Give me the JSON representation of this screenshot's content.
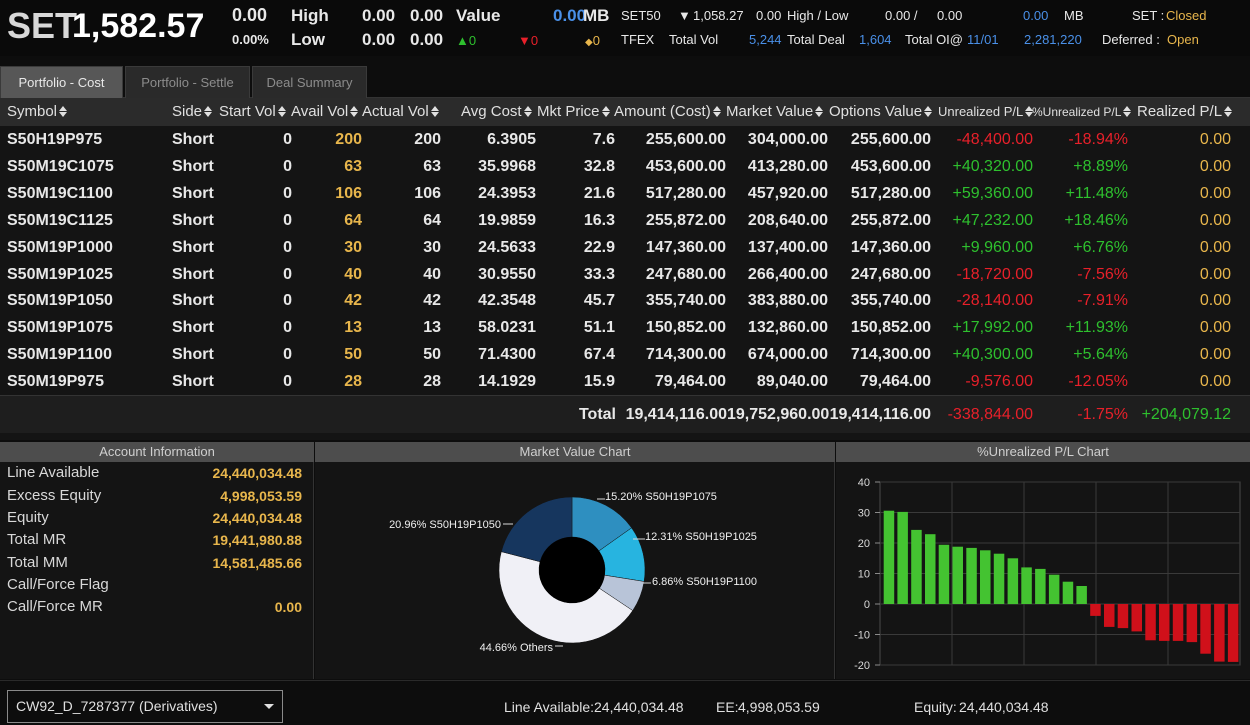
{
  "ticker": {
    "set_label": "SET",
    "set_value": "1,582.57",
    "change": "0.00",
    "change_pct": "0.00%",
    "high_label": "High",
    "low_label": "Low",
    "high_values": [
      "0.00",
      "0.00"
    ],
    "low_values": [
      "0.00",
      "0.00"
    ],
    "value_label": "Value",
    "value_amount": "0.00",
    "value_unit": "MB",
    "up_count": "0",
    "down_count": "0",
    "unchanged_count": "0",
    "set50_label": "SET50",
    "set50_value": "1,058.27",
    "set50_change": "0.00",
    "set50_hl_label": "High / Low",
    "set50_high": "0.00 /",
    "set50_low": "0.00",
    "set50_value_amount": "0.00",
    "set50_value_unit": "MB",
    "tfex_label": "TFEX",
    "total_vol_label": "Total Vol",
    "total_vol": "5,244",
    "total_deal_label": "Total Deal",
    "total_deal": "1,604",
    "total_oi_label": "Total OI@",
    "total_oi_date": "11/01",
    "total_oi": "2,281,220",
    "set_status_label": "SET :",
    "set_status": "Closed",
    "deferred_label": "Deferred :",
    "deferred_status": "Open"
  },
  "tabs": [
    "Portfolio - Cost",
    "Portfolio - Settle",
    "Deal Summary"
  ],
  "columns": [
    "Symbol",
    "Side",
    "Start Vol",
    "Avail Vol",
    "Actual Vol",
    "Avg Cost",
    "Mkt Price",
    "Amount (Cost)",
    "Market Value",
    "Options Value",
    "Unrealized P/L",
    "%Unrealized P/L",
    "Realized P/L"
  ],
  "rows": [
    [
      "S50H19P975",
      "Short",
      "0",
      "200",
      "200",
      "6.3905",
      "7.6",
      "255,600.00",
      "304,000.00",
      "255,600.00",
      "-48,400.00",
      "-18.94%",
      "0.00"
    ],
    [
      "S50M19C1075",
      "Short",
      "0",
      "63",
      "63",
      "35.9968",
      "32.8",
      "453,600.00",
      "413,280.00",
      "453,600.00",
      "+40,320.00",
      "+8.89%",
      "0.00"
    ],
    [
      "S50M19C1100",
      "Short",
      "0",
      "106",
      "106",
      "24.3953",
      "21.6",
      "517,280.00",
      "457,920.00",
      "517,280.00",
      "+59,360.00",
      "+11.48%",
      "0.00"
    ],
    [
      "S50M19C1125",
      "Short",
      "0",
      "64",
      "64",
      "19.9859",
      "16.3",
      "255,872.00",
      "208,640.00",
      "255,872.00",
      "+47,232.00",
      "+18.46%",
      "0.00"
    ],
    [
      "S50M19P1000",
      "Short",
      "0",
      "30",
      "30",
      "24.5633",
      "22.9",
      "147,360.00",
      "137,400.00",
      "147,360.00",
      "+9,960.00",
      "+6.76%",
      "0.00"
    ],
    [
      "S50M19P1025",
      "Short",
      "0",
      "40",
      "40",
      "30.9550",
      "33.3",
      "247,680.00",
      "266,400.00",
      "247,680.00",
      "-18,720.00",
      "-7.56%",
      "0.00"
    ],
    [
      "S50M19P1050",
      "Short",
      "0",
      "42",
      "42",
      "42.3548",
      "45.7",
      "355,740.00",
      "383,880.00",
      "355,740.00",
      "-28,140.00",
      "-7.91%",
      "0.00"
    ],
    [
      "S50M19P1075",
      "Short",
      "0",
      "13",
      "13",
      "58.0231",
      "51.1",
      "150,852.00",
      "132,860.00",
      "150,852.00",
      "+17,992.00",
      "+11.93%",
      "0.00"
    ],
    [
      "S50M19P1100",
      "Short",
      "0",
      "50",
      "50",
      "71.4300",
      "67.4",
      "714,300.00",
      "674,000.00",
      "714,300.00",
      "+40,300.00",
      "+5.64%",
      "0.00"
    ],
    [
      "S50M19P975",
      "Short",
      "0",
      "28",
      "28",
      "14.1929",
      "15.9",
      "79,464.00",
      "89,040.00",
      "79,464.00",
      "-9,576.00",
      "-12.05%",
      "0.00"
    ]
  ],
  "totals": {
    "label": "Total",
    "amount_cost": "19,414,116.00",
    "market_value": "19,752,960.00",
    "options_value": "19,414,116.00",
    "unrealized": "-338,844.00",
    "unrealized_pct": "-1.75%",
    "realized": "+204,079.12"
  },
  "panels": {
    "account_title": "Account Information",
    "mv_chart_title": "Market Value Chart",
    "pl_chart_title": "%Unrealized P/L Chart"
  },
  "account": [
    {
      "label": "Line Available",
      "value": "24,440,034.48"
    },
    {
      "label": "Excess Equity",
      "value": "4,998,053.59"
    },
    {
      "label": "Equity",
      "value": "24,440,034.48"
    },
    {
      "label": "Total MR",
      "value": "19,441,980.88"
    },
    {
      "label": "Total MM",
      "value": "14,581,485.66"
    },
    {
      "label": "Call/Force Flag",
      "value": ""
    },
    {
      "label": "Call/Force MR",
      "value": "0.00"
    }
  ],
  "footer": {
    "account_selector": "CW92_D_7287377 (Derivatives)",
    "line_available_label": "Line Available:",
    "line_available": "24,440,034.48",
    "ee_label": "EE:",
    "ee": "4,998,053.59",
    "equity_label": "Equity:",
    "equity": "24,440,034.48"
  },
  "colors": {
    "positive": "#2ec02e",
    "negative": "#e8202a",
    "highlight": "#e8b64c",
    "info": "#4a90e8"
  },
  "chart_data": [
    {
      "type": "pie",
      "title": "Market Value Chart",
      "slices": [
        {
          "label": "15.20% S50H19P1075",
          "value": 15.2,
          "color": "#2e8fc0"
        },
        {
          "label": "12.31% S50H19P1025",
          "value": 12.31,
          "color": "#27b4e0"
        },
        {
          "label": "6.86% S50H19P1100",
          "value": 6.86,
          "color": "#b8c4d8"
        },
        {
          "label": "44.66% Others",
          "value": 44.66,
          "color": "#f0f0f6"
        },
        {
          "label": "20.96% S50H19P1050",
          "value": 20.96,
          "color": "#16365e"
        }
      ]
    },
    {
      "type": "bar",
      "title": "%Unrealized P/L Chart",
      "values": [
        30.6,
        30.2,
        24.3,
        22.9,
        19.4,
        18.8,
        18.4,
        17.6,
        16.5,
        15.0,
        12.0,
        11.5,
        9.6,
        7.3,
        5.9,
        -3.9,
        -7.5,
        -7.9,
        -9.0,
        -11.9,
        -12.1,
        -12.1,
        -12.5,
        -16.3,
        -18.9,
        -19.0
      ],
      "ylim": [
        -20,
        40
      ],
      "yticks": [
        40,
        30,
        20,
        10,
        0,
        -10,
        -20
      ],
      "grid": true,
      "positive_color": "#44c331",
      "negative_color": "#d0101a"
    }
  ]
}
